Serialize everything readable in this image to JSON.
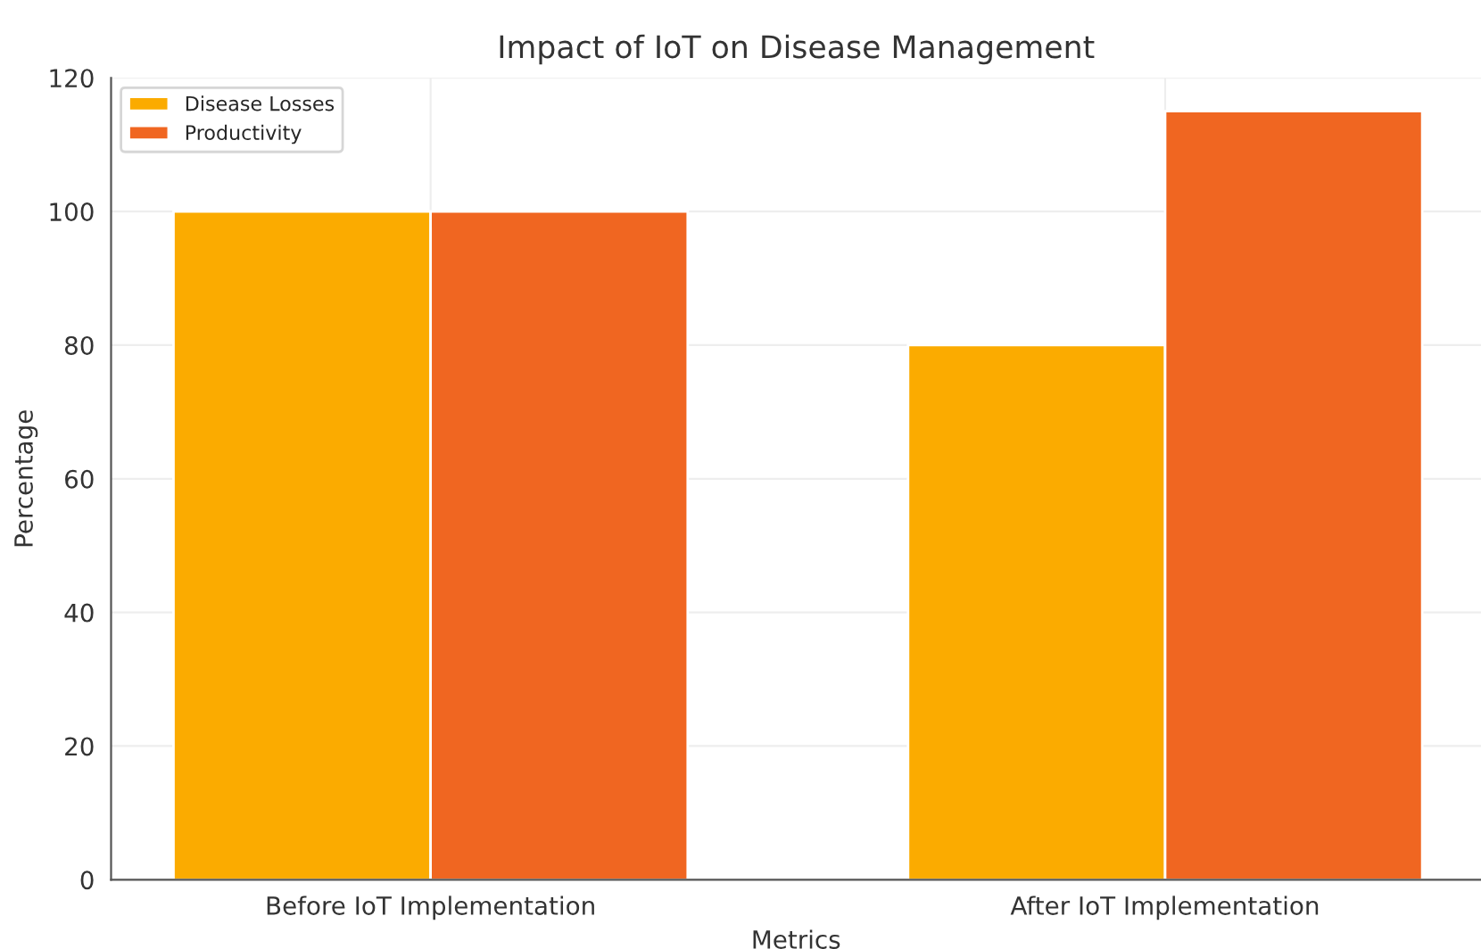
{
  "chart_data": {
    "type": "bar",
    "title": "Impact of IoT on Disease Management",
    "xlabel": "Metrics",
    "ylabel": "Percentage",
    "categories": [
      "Before IoT Implementation",
      "After IoT Implementation"
    ],
    "series": [
      {
        "name": "Disease Losses",
        "color": "#fbab00",
        "values": [
          100,
          80
        ]
      },
      {
        "name": "Productivity",
        "color": "#f06621",
        "values": [
          100,
          115
        ]
      }
    ],
    "ylim": [
      0,
      120
    ],
    "yticks": [
      0,
      20,
      40,
      60,
      80,
      100,
      120
    ],
    "grid": true,
    "legend": "top left"
  }
}
